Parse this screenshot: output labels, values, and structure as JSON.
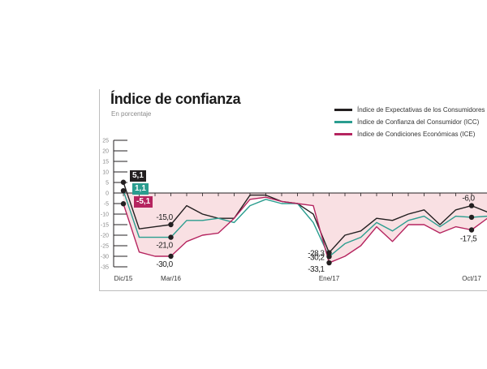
{
  "chart_data": {
    "type": "line",
    "title": "Índice de confianza",
    "subtitle": "En porcentaje",
    "xlabel": "",
    "ylabel": "",
    "ylim": [
      -35,
      25
    ],
    "yticks": [
      25,
      20,
      15,
      10,
      5,
      0,
      -5,
      -10,
      -15,
      -20,
      -25,
      -30,
      -35
    ],
    "x": [
      "Dic/15",
      "Ene/16",
      "Feb/16",
      "Mar/16",
      "Abr/16",
      "May/16",
      "Jun/16",
      "Jul/16",
      "Ago/16",
      "Sep/16",
      "Oct/16",
      "Nov/16",
      "Dic/16",
      "Ene/17",
      "Feb/17",
      "Mar/17",
      "Abr/17",
      "May/17",
      "Jun/17",
      "Jul/17",
      "Ago/17",
      "Sep/17",
      "Oct/17",
      "Nov/17"
    ],
    "x_tick_labels": [
      "Dic/15",
      "Mar/16",
      "Ene/17",
      "Oct/17"
    ],
    "series": [
      {
        "name": "Índice de Expectativas de los Consumidores",
        "color": "#231f20",
        "values": [
          5.1,
          -17,
          -16,
          -15.0,
          -6,
          -10,
          -12,
          -12,
          -1,
          -1,
          -4,
          -5,
          -10,
          -28.3,
          -20,
          -18,
          -12,
          -13,
          -10,
          -8,
          -15,
          -8,
          -6.0,
          -9
        ]
      },
      {
        "name": "Índice de Confianza del Consumidor (ICC)",
        "color": "#2a9d8f",
        "values": [
          1.1,
          -21,
          -21,
          -21.0,
          -13,
          -13,
          -12,
          -14,
          -6,
          -3,
          -5,
          -5,
          -14,
          -30.2,
          -24,
          -21,
          -14,
          -18,
          -13,
          -11,
          -16,
          -11,
          -11.5,
          -11
        ]
      },
      {
        "name": "Índice de Condiciones Económicas (ICE)",
        "color": "#b5245f",
        "values": [
          -5.1,
          -28,
          -30,
          -30.0,
          -23,
          -20,
          -19,
          -12,
          -3,
          -2,
          -4,
          -5,
          -6,
          -33.1,
          -30,
          -25,
          -16,
          -23,
          -15,
          -15,
          -19,
          -16,
          -17.5,
          -12
        ]
      }
    ],
    "annotations": [
      {
        "x": "Dic/15",
        "series": 0,
        "label": "5,1"
      },
      {
        "x": "Dic/15",
        "series": 1,
        "label": "1,1"
      },
      {
        "x": "Dic/15",
        "series": 2,
        "label": "-5,1"
      },
      {
        "x": "Mar/16",
        "series": 0,
        "label": "-15,0"
      },
      {
        "x": "Mar/16",
        "series": 1,
        "label": "-21,0"
      },
      {
        "x": "Mar/16",
        "series": 2,
        "label": "-30,0"
      },
      {
        "x": "Ene/17",
        "series": 0,
        "label": "-28,3"
      },
      {
        "x": "Ene/17",
        "series": 1,
        "label": "-30,2"
      },
      {
        "x": "Ene/17",
        "series": 2,
        "label": "-33,1"
      },
      {
        "x": "Oct/17",
        "series": 0,
        "label": "-6,0"
      },
      {
        "x": "Oct/17",
        "series": 2,
        "label": "-17,5"
      }
    ],
    "grid": false,
    "legend_position": "top-right",
    "shaded_area": {
      "from": 0,
      "to": "ICE",
      "color": "#f9e0e3"
    }
  },
  "header": {
    "title": "Índice de confianza",
    "subtitle": "En porcentaje"
  },
  "legend": [
    {
      "label": "Índice de Expectativas de los Consumidores",
      "color": "#231f20"
    },
    {
      "label": "Índice de Confianza del Consumidor (ICC)",
      "color": "#2a9d8f"
    },
    {
      "label": "Índice de Condiciones Económicas (ICE)",
      "color": "#b5245f"
    }
  ],
  "badges": {
    "black": "5,1",
    "teal": "1,1",
    "magenta": "-5,1"
  }
}
